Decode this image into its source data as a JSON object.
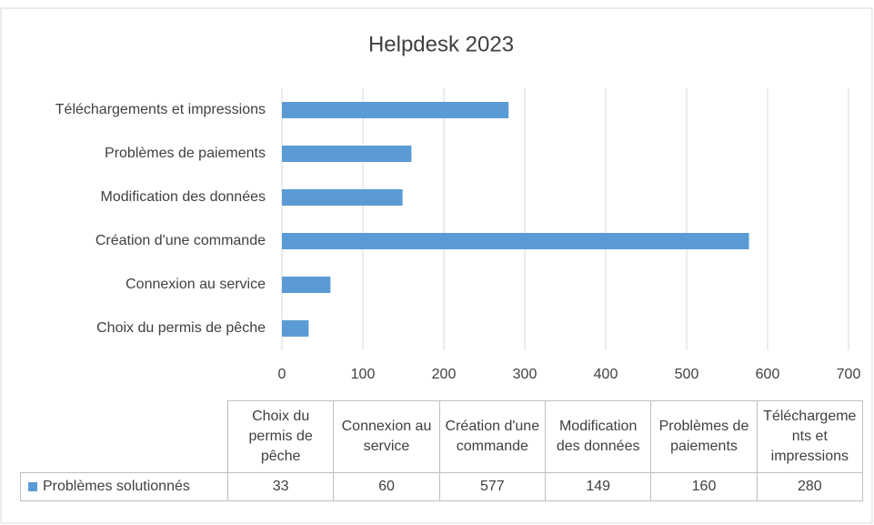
{
  "chart_data": {
    "type": "bar",
    "orientation": "horizontal",
    "title": "Helpdesk 2023",
    "categories": [
      "Choix du permis de pêche",
      "Connexion au service",
      "Création d'une commande",
      "Modification des données",
      "Problèmes de paiements",
      "Téléchargements et impressions"
    ],
    "series": [
      {
        "name": "Problèmes solutionnés",
        "color": "#5b9bd5",
        "values": [
          33,
          60,
          577,
          149,
          160,
          280
        ]
      }
    ],
    "xlim": [
      0,
      700
    ],
    "xticks": [
      0,
      100,
      200,
      300,
      400,
      500,
      600,
      700
    ],
    "grid": true,
    "data_table": true
  }
}
